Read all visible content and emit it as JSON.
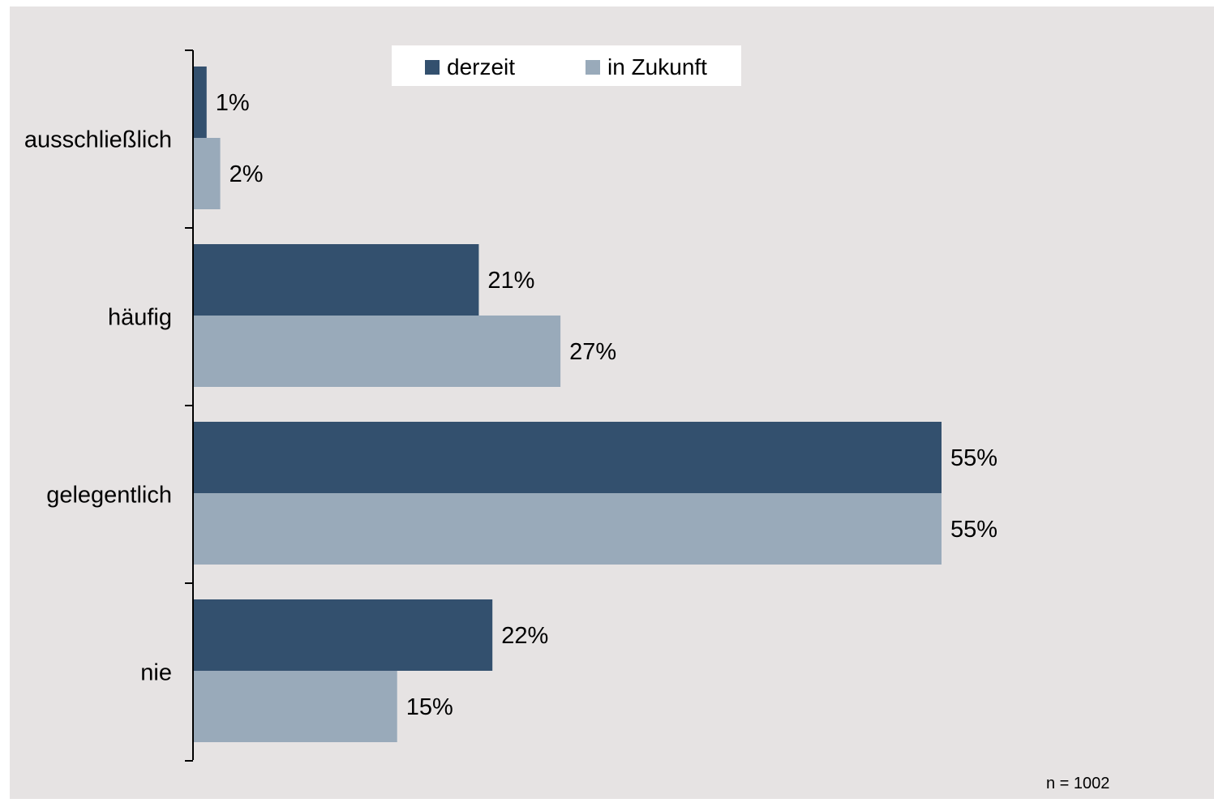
{
  "chart_data": {
    "type": "bar",
    "orientation": "horizontal",
    "categories": [
      "ausschließlich",
      "häufig",
      "gelegentlich",
      "nie"
    ],
    "series": [
      {
        "name": "derzeit",
        "values": [
          1,
          21,
          55,
          22
        ],
        "labels": [
          "1%",
          "21%",
          "55%",
          "22%"
        ]
      },
      {
        "name": "in Zukunft",
        "values": [
          2,
          27,
          55,
          15
        ],
        "labels": [
          "2%",
          "27%",
          "55%",
          "15%"
        ]
      }
    ],
    "xlim": [
      0,
      70
    ],
    "grid": false,
    "legend_position": "top-center",
    "note": "n = 1002",
    "colors": {
      "background": "#E6E3E3",
      "derzeit": "#33506E",
      "in_zukunft": "#99AABA",
      "legend_box": "#FFFFFF",
      "axis": "#000000"
    }
  }
}
